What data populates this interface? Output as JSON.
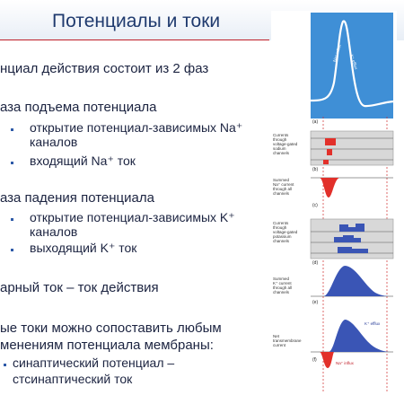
{
  "slide": {
    "title": "Потенциалы и токи",
    "lines": [
      "нциал действия состоит из 2 фаз",
      "аза подъема потенциала",
      "открытие потенциал-зависимых Na⁺",
      "каналов",
      "входящий Na⁺ ток",
      "аза падения потенциала",
      "открытие потенциал-зависимых K⁺",
      "каналов",
      "выходящий K⁺ ток",
      "арный ток – ток действия",
      "ые токи можно сопоставить любым",
      "менениям потенциала мембраны:",
      "синаптический потенциал –",
      "стсинаптический ток"
    ]
  },
  "figure": {
    "panel_a": {
      "letter": "(a)",
      "label_in": "Na⁺ influx",
      "label_out": "K⁺ efflux"
    },
    "panel_b": {
      "letter": "(b)",
      "label": [
        "Currents",
        "through",
        "voltage-gated",
        "sodium",
        "channels"
      ]
    },
    "panel_c": {
      "letter": "(c)",
      "label": [
        "Summed",
        "Na⁺ current",
        "through all",
        "channels"
      ]
    },
    "panel_d": {
      "letter": "(d)",
      "label": [
        "Currents",
        "through",
        "voltage-gated",
        "potassium",
        "channels"
      ]
    },
    "panel_e": {
      "letter": "(e)",
      "label": [
        "Summed",
        "K⁺ current",
        "through all",
        "channels"
      ]
    },
    "panel_f": {
      "letter": "(f)",
      "label": [
        "Net",
        "transmembrane",
        "current"
      ],
      "k_label": "K⁺ efflux",
      "na_label": "Na⁺ influx"
    },
    "colors": {
      "top_panel": "#3f8fd6",
      "red_fill": "#e2302a",
      "blue_fill": "#3a55b5",
      "dash": "#d02a2a"
    }
  }
}
